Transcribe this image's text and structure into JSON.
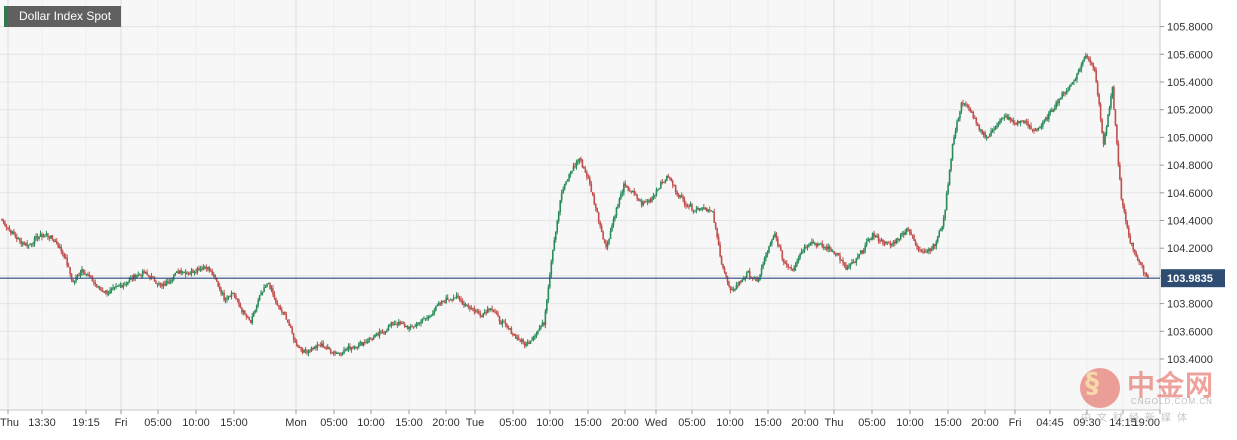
{
  "chart_data": {
    "type": "candlestick",
    "title": "Dollar Index Spot",
    "last_price": "103.9835",
    "ylim": [
      103.2,
      105.9
    ],
    "y_ticks": [
      "103.4000",
      "103.6000",
      "103.8000",
      "104.0000",
      "104.2000",
      "104.4000",
      "104.6000",
      "104.8000",
      "105.0000",
      "105.2000",
      "105.4000",
      "105.6000",
      "105.8000"
    ],
    "x_ticks": [
      "Thu",
      "13:30",
      "19:15",
      "Fri",
      "05:00",
      "10:00",
      "15:00",
      "Mon",
      "05:00",
      "10:00",
      "15:00",
      "20:00",
      "Tue",
      "05:00",
      "10:00",
      "15:00",
      "20:00",
      "Wed",
      "05:00",
      "10:00",
      "15:00",
      "20:00",
      "Thu",
      "05:00",
      "10:00",
      "15:00",
      "20:00",
      "Fri",
      "04:45",
      "09:30",
      "14:15",
      "19:00"
    ],
    "x_day_starts": [
      "Thu",
      "Fri",
      "Mon",
      "Tue",
      "Wed",
      "Thu",
      "Fri"
    ],
    "series": [
      {
        "values": [
          104.4,
          104.32,
          104.25,
          104.22,
          104.28,
          104.3,
          104.25,
          104.15,
          103.95,
          104.05,
          103.98,
          103.9,
          103.88,
          103.92,
          103.95,
          104.0,
          104.02,
          103.98,
          103.92,
          103.98,
          104.04,
          104.02,
          104.05,
          104.07,
          103.98,
          103.84,
          103.88,
          103.75,
          103.66,
          103.85,
          103.95,
          103.78,
          103.7,
          103.52,
          103.45,
          103.48,
          103.5,
          103.46,
          103.44,
          103.48,
          103.5,
          103.53,
          103.56,
          103.6,
          103.66,
          103.65,
          103.62,
          103.67,
          103.7,
          103.78,
          103.83,
          103.85,
          103.8,
          103.76,
          103.72,
          103.78,
          103.68,
          103.62,
          103.55,
          103.5,
          103.58,
          103.66,
          104.2,
          104.6,
          104.75,
          104.85,
          104.7,
          104.45,
          104.2,
          104.45,
          104.65,
          104.6,
          104.52,
          104.55,
          104.65,
          104.72,
          104.6,
          104.52,
          104.48,
          104.5,
          104.45,
          104.1,
          103.88,
          103.95,
          104.02,
          103.95,
          104.15,
          104.3,
          104.1,
          104.05,
          104.18,
          104.25,
          104.22,
          104.2,
          104.16,
          104.05,
          104.1,
          104.2,
          104.3,
          104.25,
          104.22,
          104.28,
          104.35,
          104.2,
          104.18,
          104.22,
          104.4,
          104.95,
          105.25,
          105.2,
          105.05,
          105.0,
          105.1,
          105.15,
          105.1,
          105.12,
          105.05,
          105.08,
          105.18,
          105.28,
          105.35,
          105.45,
          105.6,
          105.5,
          104.95,
          105.35,
          104.55,
          104.25,
          104.1,
          103.98
        ]
      }
    ]
  },
  "watermark": {
    "brand": "中金网",
    "domain": "CNGOLD.COM.CN",
    "subtitle": "中文财经新媒体"
  }
}
